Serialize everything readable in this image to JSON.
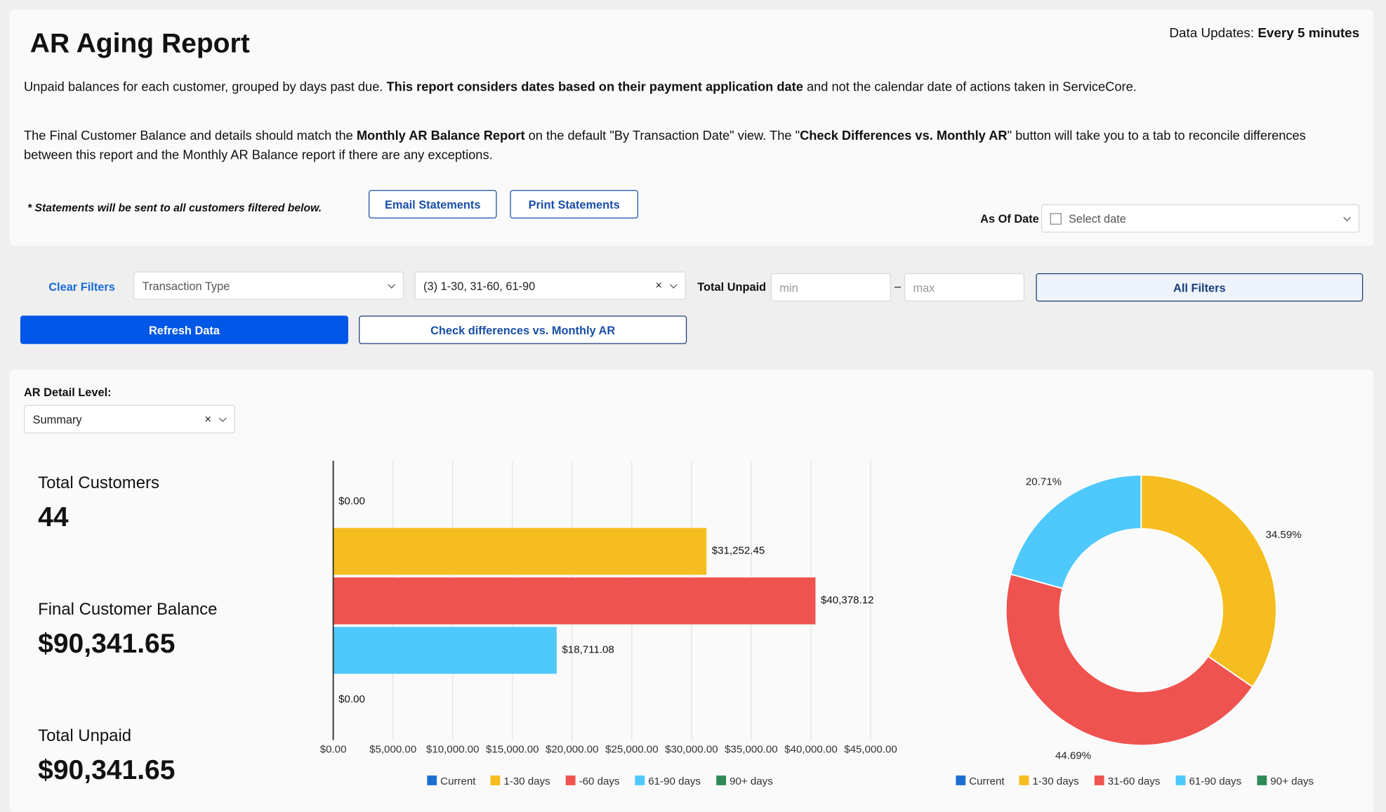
{
  "header": {
    "title": "AR Aging Report",
    "updates_label": "Data Updates:",
    "updates_value": "Every 5 minutes"
  },
  "description": {
    "p1": [
      "Unpaid balances for each customer, grouped by days past due. ",
      "This report considers dates based on their payment application date",
      " and not the calendar date of actions taken in ServiceCore."
    ],
    "p2": [
      "The Final Customer Balance and details should match the ",
      "Monthly AR Balance Report",
      " on the default \"By Transaction Date\" view. The \"",
      "Check Differences vs. Monthly AR",
      "\" button will take you to a tab to reconcile differences between this report and the Monthly AR Balance report if there are any exceptions."
    ]
  },
  "statements": {
    "note": "* Statements will be sent to all customers filtered below.",
    "email_button": "Email Statements",
    "print_button": "Print Statements"
  },
  "as_of_date": {
    "label": "As Of Date",
    "placeholder": "Select date"
  },
  "filters": {
    "clear": "Clear Filters",
    "transaction_type_placeholder": "Transaction Type",
    "aging_value": "(3) 1-30, 31-60, 61-90",
    "total_unpaid_label": "Total Unpaid",
    "min_placeholder": "min",
    "separator": "–",
    "max_placeholder": "max",
    "all_filters": "All Filters",
    "refresh": "Refresh Data",
    "check_differences": "Check differences vs. Monthly AR"
  },
  "detail_level": {
    "label": "AR Detail Level:",
    "value": "Summary"
  },
  "kpis": [
    {
      "label": "Total Customers",
      "value": "44"
    },
    {
      "label": "Final Customer Balance",
      "value": "$90,341.65"
    },
    {
      "label": "Total Unpaid",
      "value": "$90,341.65"
    }
  ],
  "chart_data": [
    {
      "type": "bar",
      "orientation": "horizontal",
      "categories": [
        "Current",
        "1-30 days",
        "-60 days",
        "61-90 days",
        "90+ days"
      ],
      "values": [
        0,
        31252.45,
        40378.12,
        18711.08,
        0
      ],
      "value_labels": [
        "$0.00",
        "$31,252.45",
        "$40,378.12",
        "$18,711.08",
        "$0.00"
      ],
      "colors": [
        "#1e6fd0",
        "#f5bd1f",
        "#ef5350",
        "#4fc9fb",
        "#2e8b57"
      ],
      "xlim": [
        0,
        45000
      ],
      "xticks": [
        {
          "value": 0,
          "label": "$0.00"
        },
        {
          "value": 5000,
          "label": "$5,000.00"
        },
        {
          "value": 10000,
          "label": "$10,000.00"
        },
        {
          "value": 15000,
          "label": "$15,000.00"
        },
        {
          "value": 20000,
          "label": "$20,000.00"
        },
        {
          "value": 25000,
          "label": "$25,000.00"
        },
        {
          "value": 30000,
          "label": "$30,000.00"
        },
        {
          "value": 35000,
          "label": "$35,000.00"
        },
        {
          "value": 40000,
          "label": "$40,000.00"
        },
        {
          "value": 45000,
          "label": "$45,000.00"
        }
      ],
      "grid": true,
      "legend": "bottom"
    },
    {
      "type": "pie",
      "donut": true,
      "categories": [
        "Current",
        "1-30 days",
        "31-60 days",
        "61-90 days",
        "90+ days"
      ],
      "values": [
        0,
        34.59,
        44.69,
        20.71,
        0
      ],
      "value_labels": [
        null,
        "34.59%",
        "44.69%",
        "20.71%",
        null
      ],
      "colors": [
        "#1e6fd0",
        "#f5bd1f",
        "#ef5350",
        "#4fc9fb",
        "#2e8b57"
      ],
      "legend": "bottom"
    }
  ]
}
